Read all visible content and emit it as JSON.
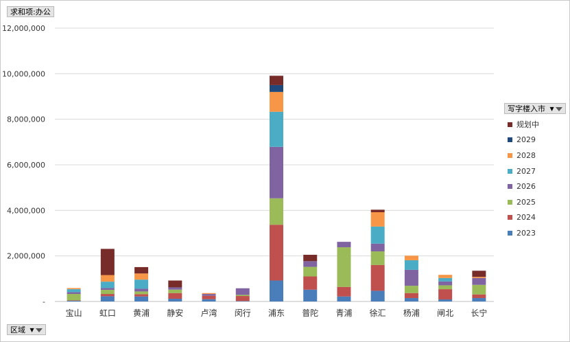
{
  "value_field_button": "求和项:办公",
  "series_field_button": "写字楼入市",
  "axis_field_button": "区域",
  "icons": {
    "dropdown": "dropdown-arrow-icon",
    "filter": "filter-icon"
  },
  "chart_data": {
    "type": "bar",
    "stacked": true,
    "categories": [
      "宝山",
      "虹口",
      "黄浦",
      "静安",
      "卢湾",
      "闵行",
      "浦东",
      "普陀",
      "青浦",
      "徐汇",
      "杨浦",
      "闸北",
      "长宁"
    ],
    "ylim": [
      0,
      12000000
    ],
    "yticks": [
      0,
      2000000,
      4000000,
      6000000,
      8000000,
      10000000,
      12000000
    ],
    "ytick_labels": [
      "-",
      "2,000,000",
      "4,000,000",
      "6,000,000",
      "8,000,000",
      "10,000,000",
      "12,000,000"
    ],
    "grid": true,
    "legend_position": "right",
    "series": [
      {
        "name": "2023",
        "color": "#4a7ebb",
        "values": [
          30000,
          230000,
          220000,
          120000,
          100000,
          20000,
          920000,
          520000,
          220000,
          470000,
          150000,
          90000,
          150000
        ]
      },
      {
        "name": "2024",
        "color": "#c0504d",
        "values": [
          20000,
          100000,
          100000,
          250000,
          150000,
          220000,
          2450000,
          580000,
          420000,
          1130000,
          220000,
          450000,
          160000
        ]
      },
      {
        "name": "2025",
        "color": "#9bbb59",
        "values": [
          280000,
          180000,
          120000,
          150000,
          0,
          50000,
          1160000,
          420000,
          1740000,
          600000,
          320000,
          170000,
          420000
        ]
      },
      {
        "name": "2026",
        "color": "#8064a2",
        "values": [
          80000,
          80000,
          120000,
          100000,
          80000,
          290000,
          2260000,
          250000,
          240000,
          340000,
          700000,
          170000,
          300000
        ]
      },
      {
        "name": "2027",
        "color": "#4bacc6",
        "values": [
          130000,
          280000,
          400000,
          0,
          0,
          0,
          1540000,
          0,
          0,
          750000,
          420000,
          150000,
          0
        ]
      },
      {
        "name": "2028",
        "color": "#f79646",
        "values": [
          50000,
          290000,
          270000,
          0,
          40000,
          0,
          870000,
          0,
          0,
          630000,
          200000,
          140000,
          50000
        ]
      },
      {
        "name": "2029",
        "color": "#1f497d",
        "values": [
          0,
          0,
          0,
          0,
          0,
          0,
          300000,
          0,
          0,
          0,
          0,
          0,
          0
        ]
      },
      {
        "name": "规划中",
        "color": "#772c2a",
        "values": [
          0,
          1150000,
          280000,
          300000,
          0,
          0,
          410000,
          280000,
          0,
          110000,
          0,
          0,
          270000
        ]
      }
    ]
  }
}
